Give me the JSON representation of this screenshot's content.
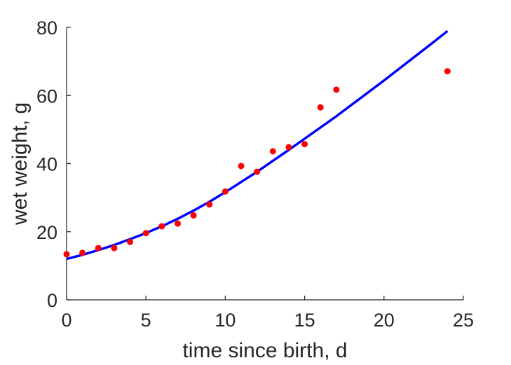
{
  "chart_data": {
    "type": "scatter",
    "xlabel": "time since birth, d",
    "ylabel": "wet weight, g",
    "xlim": [
      0,
      25
    ],
    "ylim": [
      0,
      80
    ],
    "xticks": [
      0,
      5,
      10,
      15,
      20,
      25
    ],
    "yticks": [
      0,
      20,
      40,
      60,
      80
    ],
    "grid": false,
    "series": [
      {
        "kind": "points",
        "color": "#ff0000",
        "x": [
          0,
          1,
          2,
          3,
          4,
          5,
          6,
          7,
          8,
          9,
          10,
          11,
          12,
          13,
          14,
          15,
          16,
          17,
          24
        ],
        "y": [
          13.4,
          13.8,
          15.2,
          15.2,
          17.0,
          19.6,
          21.6,
          22.4,
          24.8,
          28.0,
          31.8,
          39.3,
          37.6,
          43.6,
          44.8,
          45.7,
          56.5,
          61.7,
          67.1
        ]
      },
      {
        "kind": "line",
        "color": "#0000ff",
        "x": [
          0,
          1,
          2,
          3,
          4,
          5,
          6,
          7,
          8,
          9,
          10,
          11,
          12,
          13,
          14,
          15,
          16,
          17,
          18,
          19,
          20,
          21,
          22,
          23,
          24
        ],
        "y": [
          12.0,
          13.2,
          14.6,
          16.1,
          17.8,
          19.6,
          21.6,
          23.8,
          26.2,
          28.8,
          31.6,
          34.6,
          37.6,
          40.8,
          44.0,
          47.3,
          50.6,
          53.9,
          57.4,
          60.9,
          64.4,
          68.0,
          71.6,
          75.2,
          78.9
        ]
      }
    ]
  }
}
